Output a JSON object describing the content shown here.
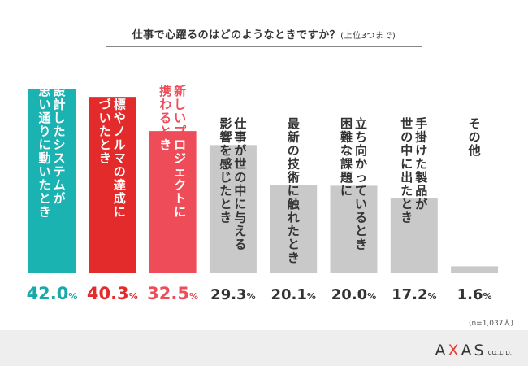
{
  "chart_data": {
    "type": "bar",
    "title": "仕事で心躍るのはどのようなときですか？",
    "title_note": "(上位3つまで)",
    "categories": [
      "設計したシステムが思い通りに動いたとき",
      "目標やノルマの達成に近づいたとき",
      "新しいプロジェクトに携わるとき",
      "仕事が世の中に与える影響を感じたとき",
      "最新の技術に触れたとき",
      "立ち向かっているとき困難な課題に",
      "手掛けた製品が世の中に出たとき",
      "その他"
    ],
    "label_columns": [
      [
        "設計したシステムが",
        "思い通りに動いたとき"
      ],
      [
        "目標やノルマの達成に",
        "近づいたとき"
      ],
      [
        "新しいプロジェクトに",
        "携わるとき"
      ],
      [
        "仕事が世の中に与える",
        "影響を感じたとき"
      ],
      [
        "最新の技術に触れたとき"
      ],
      [
        "立ち向かっているとき",
        "困難な課題に"
      ],
      [
        "手掛けた製品が",
        "世の中に出たとき"
      ],
      [
        "その他"
      ]
    ],
    "values": [
      42.0,
      40.3,
      32.5,
      29.3,
      20.1,
      20.0,
      17.2,
      1.6
    ],
    "value_labels": [
      "42.0",
      "40.3",
      "32.5",
      "29.3",
      "20.1",
      "20.0",
      "17.2",
      "1.6"
    ],
    "unit": "%",
    "ylim": [
      0,
      42
    ],
    "grid": false,
    "bar_colors": [
      "#1bb2b2",
      "#e32b2b",
      "#ee4c59",
      "#c9c9c9",
      "#c9c9c9",
      "#c9c9c9",
      "#c9c9c9",
      "#c9c9c9"
    ],
    "value_colors": [
      "#1aa9a9",
      "#e32b2b",
      "#ee4c59",
      "#333333",
      "#333333",
      "#333333",
      "#333333",
      "#333333"
    ],
    "label_text_colors": [
      "#ffffff",
      "#ffffff",
      "#ffffff",
      "#333333",
      "#333333",
      "#333333",
      "#333333",
      "#333333"
    ],
    "label_above_colors": [
      "#ffffff",
      "#ffffff",
      "#ee4c59",
      "#333333",
      "#333333",
      "#333333",
      "#333333",
      "#333333"
    ]
  },
  "note": "(n=1,037人)",
  "logo": {
    "left": "A",
    "x": "X",
    "right": "AS",
    "suffix": "CO.,LTD."
  }
}
